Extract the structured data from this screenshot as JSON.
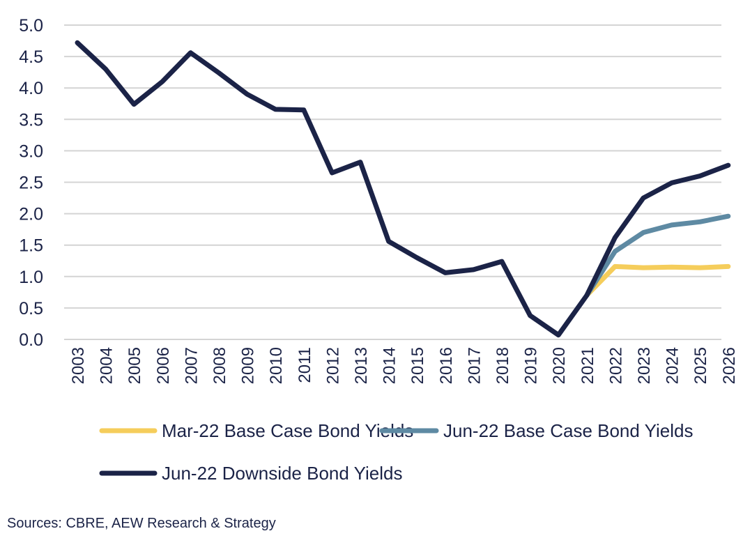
{
  "chart_data": {
    "type": "line",
    "title": "",
    "xlabel": "",
    "ylabel": "",
    "ylim": [
      0,
      5
    ],
    "yticks": [
      "0.0",
      "0.5",
      "1.0",
      "1.5",
      "2.0",
      "2.5",
      "3.0",
      "3.5",
      "4.0",
      "4.5",
      "5.0"
    ],
    "grid": true,
    "legend_position": "bottom",
    "categories": [
      "2003",
      "2004",
      "2005",
      "2006",
      "2007",
      "2008",
      "2009",
      "2010",
      "2011",
      "2012",
      "2013",
      "2014",
      "2015",
      "2016",
      "2017",
      "2018",
      "2019",
      "2020",
      "2021",
      "2022",
      "2023",
      "2024",
      "2025",
      "2026"
    ],
    "series": [
      {
        "name": "Mar-22 Base Case Bond Yields",
        "color": "#f5cd5b",
        "values": [
          null,
          null,
          null,
          null,
          null,
          null,
          null,
          null,
          null,
          null,
          null,
          null,
          null,
          null,
          null,
          null,
          null,
          null,
          0.7,
          1.16,
          1.14,
          1.15,
          1.14,
          1.16
        ]
      },
      {
        "name": "Jun-22 Base Case Bond Yields",
        "color": "#5e8aa3",
        "values": [
          null,
          null,
          null,
          null,
          null,
          null,
          null,
          null,
          null,
          null,
          null,
          null,
          null,
          null,
          null,
          null,
          null,
          null,
          0.7,
          1.4,
          1.7,
          1.82,
          1.87,
          1.96
        ]
      },
      {
        "name": "Jun-22 Downside Bond Yields",
        "color": "#1b2347",
        "values": [
          4.72,
          4.3,
          3.74,
          4.1,
          4.56,
          4.24,
          3.9,
          3.66,
          3.65,
          2.65,
          2.82,
          1.56,
          1.3,
          1.06,
          1.11,
          1.24,
          0.38,
          0.07,
          0.7,
          1.62,
          2.25,
          2.49,
          2.6,
          2.77
        ]
      }
    ]
  },
  "source_note": "Sources: CBRE, AEW Research & Strategy"
}
